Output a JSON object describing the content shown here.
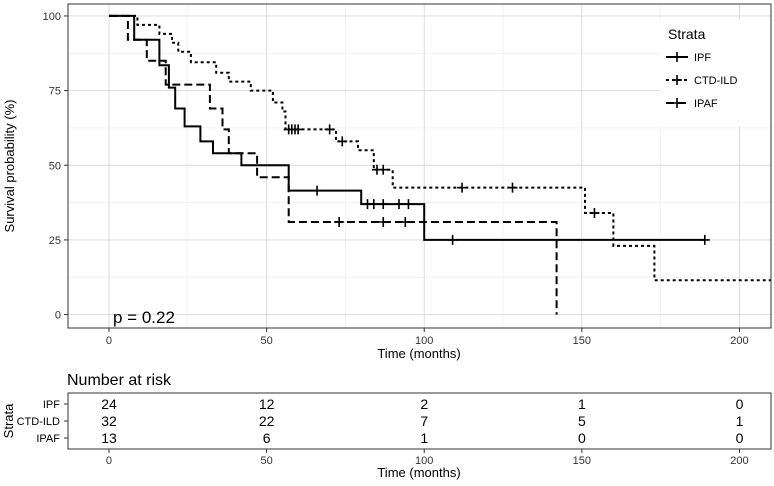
{
  "chart_data": {
    "type": "line",
    "subtype": "kaplan-meier",
    "xlabel": "Time (months)",
    "ylabel": "Survival probability (%)",
    "xlim": [
      -13,
      210
    ],
    "ylim": [
      -4.5,
      104
    ],
    "x_ticks": [
      0,
      50,
      100,
      150,
      200
    ],
    "y_ticks": [
      0,
      25,
      50,
      75,
      100
    ],
    "grid": true,
    "legend": {
      "title": "Strata",
      "placement": "top-right-inside",
      "entries": [
        "IPF",
        "CTD-ILD",
        "IPAF"
      ]
    },
    "annotation": "p = 0.22",
    "series": [
      {
        "name": "IPF",
        "linestyle": "solid",
        "steps": [
          [
            0,
            100
          ],
          [
            8,
            92
          ],
          [
            10,
            92
          ],
          [
            16,
            83.5
          ],
          [
            19,
            76
          ],
          [
            21,
            69
          ],
          [
            24,
            63
          ],
          [
            29,
            58
          ],
          [
            33,
            54
          ],
          [
            42,
            50
          ],
          [
            50,
            50
          ],
          [
            57,
            41.5
          ],
          [
            80,
            37
          ],
          [
            100,
            25
          ],
          [
            189,
            25
          ]
        ],
        "censors": [
          [
            66,
            41.5
          ],
          [
            82,
            37
          ],
          [
            84,
            37
          ],
          [
            87,
            37
          ],
          [
            92,
            37
          ],
          [
            95,
            37
          ],
          [
            109,
            25
          ],
          [
            189,
            25
          ]
        ]
      },
      {
        "name": "CTD-ILD",
        "linestyle": "dotted",
        "steps": [
          [
            0,
            100
          ],
          [
            9,
            97
          ],
          [
            16,
            94
          ],
          [
            20,
            91
          ],
          [
            22,
            88
          ],
          [
            26,
            84.5
          ],
          [
            34,
            81
          ],
          [
            38,
            78
          ],
          [
            45,
            75
          ],
          [
            52,
            71
          ],
          [
            55,
            68
          ],
          [
            56,
            62
          ],
          [
            72,
            58
          ],
          [
            79,
            55
          ],
          [
            84,
            48.5
          ],
          [
            90,
            42.5
          ],
          [
            151,
            34
          ],
          [
            160,
            23
          ],
          [
            173,
            11.5
          ],
          [
            210,
            11.5
          ]
        ],
        "censors": [
          [
            57,
            62
          ],
          [
            58,
            62
          ],
          [
            59,
            62
          ],
          [
            60,
            62
          ],
          [
            70,
            62
          ],
          [
            74,
            58
          ],
          [
            85,
            48.5
          ],
          [
            87,
            48.5
          ],
          [
            112,
            42.5
          ],
          [
            128,
            42.5
          ],
          [
            154,
            34
          ]
        ]
      },
      {
        "name": "IPAF",
        "linestyle": "dashed",
        "steps": [
          [
            0,
            100
          ],
          [
            6,
            92
          ],
          [
            12,
            85
          ],
          [
            18,
            77
          ],
          [
            30,
            77
          ],
          [
            32,
            69
          ],
          [
            36,
            62
          ],
          [
            38,
            54
          ],
          [
            47,
            46
          ],
          [
            57,
            31
          ],
          [
            142,
            31
          ],
          [
            142,
            0
          ]
        ],
        "censors": [
          [
            73,
            31
          ],
          [
            87,
            31
          ],
          [
            94,
            31
          ]
        ]
      }
    ]
  },
  "risk_table": {
    "title": "Number at risk",
    "strata_label": "Strata",
    "xlabel": "Time (months)",
    "x_ticks": [
      0,
      50,
      100,
      150,
      200
    ],
    "rows": [
      {
        "label": "IPF",
        "values": [
          24,
          12,
          2,
          1,
          0
        ]
      },
      {
        "label": "CTD-ILD",
        "values": [
          32,
          22,
          7,
          5,
          1
        ]
      },
      {
        "label": "IPAF",
        "values": [
          13,
          6,
          1,
          0,
          0
        ]
      }
    ]
  }
}
